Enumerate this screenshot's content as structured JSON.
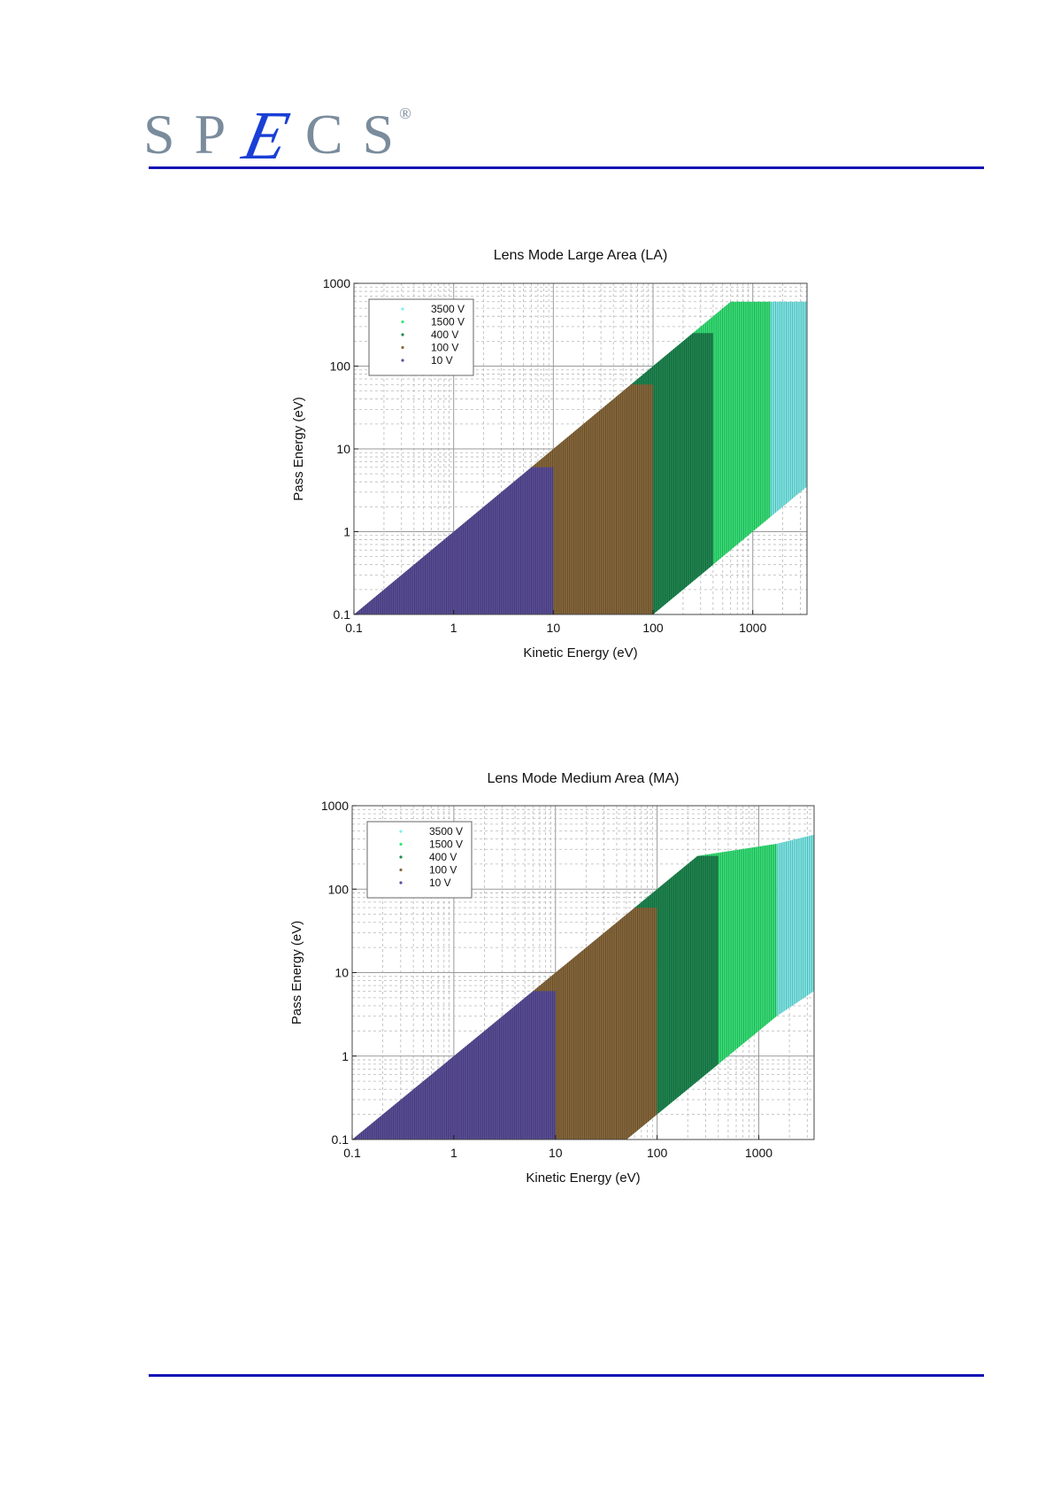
{
  "logo": {
    "letters": [
      "S",
      "P",
      "E",
      "C",
      "S"
    ],
    "registered": "®"
  },
  "chart_data": [
    {
      "type": "area",
      "title": "Lens Mode Large Area (LA)",
      "xlabel": "Kinetic Energy (eV)",
      "ylabel": "Pass Energy (eV)",
      "xscale": "log",
      "yscale": "log",
      "xlim": [
        0.1,
        3500
      ],
      "ylim": [
        0.1,
        1000
      ],
      "xticks": [
        "0.1",
        "1",
        "10",
        "100",
        "1000"
      ],
      "yticks": [
        "0.1",
        "1",
        "10",
        "100",
        "1000"
      ],
      "grid": true,
      "legend_position": "top-left",
      "series": [
        {
          "name": "3500 V",
          "color": "#7ff0ee",
          "polygon": [
            [
              1500,
              600
            ],
            [
              3500,
              600
            ],
            [
              3500,
              3.5
            ],
            [
              1500,
              1.5
            ]
          ]
        },
        {
          "name": "1500 V",
          "color": "#36e679",
          "polygon": [
            [
              100,
              100
            ],
            [
              600,
              600
            ],
            [
              1500,
              600
            ],
            [
              1500,
              1.5
            ],
            [
              400,
              0.4
            ],
            [
              100,
              0.1
            ]
          ]
        },
        {
          "name": "400 V",
          "color": "#1f8a52",
          "polygon": [
            [
              60,
              60
            ],
            [
              250,
              250
            ],
            [
              400,
              250
            ],
            [
              400,
              0.4
            ],
            [
              100,
              0.1
            ]
          ]
        },
        {
          "name": "100 V",
          "color": "#8a6a3c",
          "polygon": [
            [
              6,
              6
            ],
            [
              60,
              60
            ],
            [
              100,
              60
            ],
            [
              100,
              0.1
            ],
            [
              10,
              0.1
            ]
          ]
        },
        {
          "name": "10 V",
          "color": "#5c4f9c",
          "polygon": [
            [
              0.1,
              0.1
            ],
            [
              6,
              6
            ],
            [
              10,
              6
            ],
            [
              10,
              0.1
            ]
          ]
        }
      ]
    },
    {
      "type": "area",
      "title": "Lens Mode Medium Area (MA)",
      "xlabel": "Kinetic Energy (eV)",
      "ylabel": "Pass Energy (eV)",
      "xscale": "log",
      "yscale": "log",
      "xlim": [
        0.1,
        3500
      ],
      "ylim": [
        0.1,
        1000
      ],
      "xticks": [
        "0.1",
        "1",
        "10",
        "100",
        "1000"
      ],
      "yticks": [
        "0.1",
        "1",
        "10",
        "100",
        "1000"
      ],
      "grid": true,
      "legend_position": "top-left",
      "series": [
        {
          "name": "3500 V",
          "color": "#7ff0ee",
          "polygon": [
            [
              1500,
              350
            ],
            [
              3500,
              450
            ],
            [
              3500,
              6
            ],
            [
              1500,
              3
            ]
          ]
        },
        {
          "name": "1500 V",
          "color": "#36e679",
          "polygon": [
            [
              100,
              100
            ],
            [
              250,
              250
            ],
            [
              1500,
              350
            ],
            [
              1500,
              3
            ],
            [
              400,
              0.8
            ],
            [
              100,
              0.2
            ]
          ]
        },
        {
          "name": "400 V",
          "color": "#1f8a52",
          "polygon": [
            [
              60,
              60
            ],
            [
              250,
              250
            ],
            [
              400,
              250
            ],
            [
              400,
              0.8
            ],
            [
              100,
              0.2
            ],
            [
              50,
              0.1
            ]
          ]
        },
        {
          "name": "100 V",
          "color": "#8a6a3c",
          "polygon": [
            [
              6,
              6
            ],
            [
              60,
              60
            ],
            [
              100,
              60
            ],
            [
              100,
              0.2
            ],
            [
              50,
              0.1
            ],
            [
              10,
              0.1
            ]
          ]
        },
        {
          "name": "10 V",
          "color": "#5c4f9c",
          "polygon": [
            [
              0.1,
              0.1
            ],
            [
              6,
              6
            ],
            [
              10,
              6
            ],
            [
              10,
              0.1
            ]
          ]
        }
      ]
    }
  ]
}
